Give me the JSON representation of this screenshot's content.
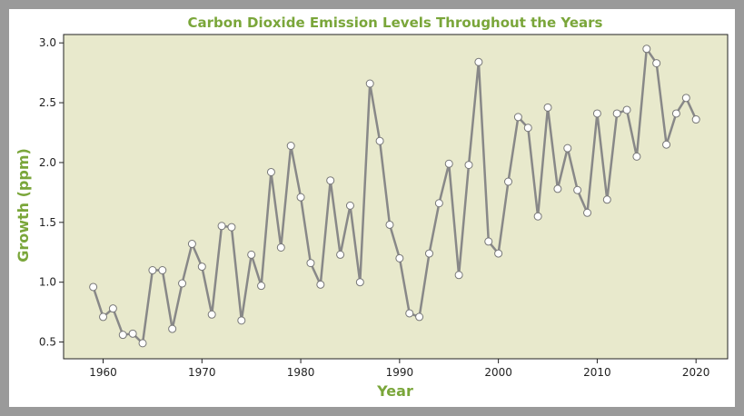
{
  "chart_data": {
    "type": "line",
    "title": "Carbon Dioxide Emission Levels Throughout the Years",
    "xlabel": "Year",
    "ylabel": "Growth (ppm)",
    "xlim": [
      1956,
      2023.2
    ],
    "ylim": [
      0.36,
      3.07
    ],
    "x_ticks": [
      1960,
      1970,
      1980,
      1990,
      2000,
      2010,
      2020
    ],
    "y_ticks": [
      0.5,
      1.0,
      1.5,
      2.0,
      2.5,
      3.0
    ],
    "x_tick_labels": [
      "1960",
      "1970",
      "1980",
      "1990",
      "2000",
      "2010",
      "2020"
    ],
    "y_tick_labels": [
      "0.5",
      "1.0",
      "1.5",
      "2.0",
      "2.5",
      "3.0"
    ],
    "grid": false,
    "legend": "none",
    "colors": {
      "title": "#7aa63a",
      "axis_label": "#7aa63a",
      "plot_background": "#e8e9cc",
      "line": "#888888",
      "marker_fill": "#ffffff",
      "marker_edge": "#777777"
    },
    "series": [
      {
        "x": [
          1959,
          1960,
          1961,
          1962,
          1963,
          1964,
          1965,
          1966,
          1967,
          1968,
          1969,
          1970,
          1971,
          1972,
          1973,
          1974,
          1975,
          1976,
          1977,
          1978,
          1979,
          1980,
          1981,
          1982,
          1983,
          1984,
          1985,
          1986,
          1987,
          1988,
          1989,
          1990,
          1991,
          1992,
          1993,
          1994,
          1995,
          1996,
          1997,
          1998,
          1999,
          2000,
          2001,
          2002,
          2003,
          2004,
          2005,
          2006,
          2007,
          2008,
          2009,
          2010,
          2011,
          2012,
          2013,
          2014,
          2015,
          2016,
          2017,
          2018,
          2019,
          2020
        ],
        "y": [
          0.96,
          0.71,
          0.78,
          0.56,
          0.57,
          0.49,
          1.1,
          1.1,
          0.61,
          0.99,
          1.32,
          1.13,
          0.73,
          1.47,
          1.46,
          0.68,
          1.23,
          0.97,
          1.92,
          1.29,
          2.14,
          1.71,
          1.16,
          0.98,
          1.85,
          1.23,
          1.64,
          1.0,
          2.66,
          2.18,
          1.48,
          1.2,
          0.74,
          0.71,
          1.24,
          1.66,
          1.99,
          1.06,
          1.98,
          2.84,
          1.34,
          1.24,
          1.84,
          2.38,
          2.29,
          1.55,
          2.46,
          1.78,
          2.12,
          1.77,
          1.58,
          2.41,
          1.69,
          2.41,
          2.44,
          2.05,
          2.95,
          2.83,
          2.15,
          2.41,
          2.54,
          2.36
        ]
      }
    ]
  }
}
